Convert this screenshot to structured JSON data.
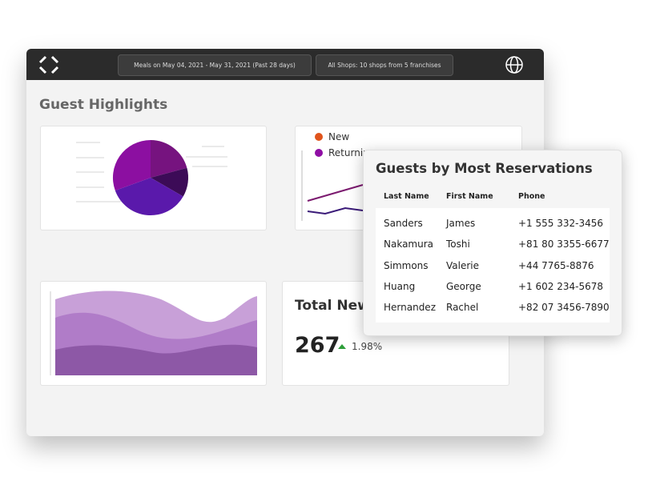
{
  "header": {
    "date_range": "Meals on May 04, 2021 - May 31, 2021 (Past 28 days)",
    "shops": "All Shops: 10 shops from 5 franchises"
  },
  "dashboard": {
    "title": "Guest Highlights",
    "legend": [
      "New",
      "Returnin"
    ],
    "total_title": "Total New",
    "total_value": "267",
    "total_change": "1.98%"
  },
  "table": {
    "title": "Guests by Most Reservations",
    "columns": [
      "Last Name",
      "First Name",
      "Phone"
    ],
    "rows": [
      [
        "Sanders",
        "James",
        "+1 555 332-3456"
      ],
      [
        "Nakamura",
        "Toshi",
        "+81 80 3355-6677"
      ],
      [
        "Simmons",
        "Valerie",
        "+44 7765-8876"
      ],
      [
        "Huang",
        "George",
        "+1 602 234-5678"
      ],
      [
        "Hernandez",
        "Rachel",
        "+82 07 3456-7890"
      ]
    ]
  }
}
